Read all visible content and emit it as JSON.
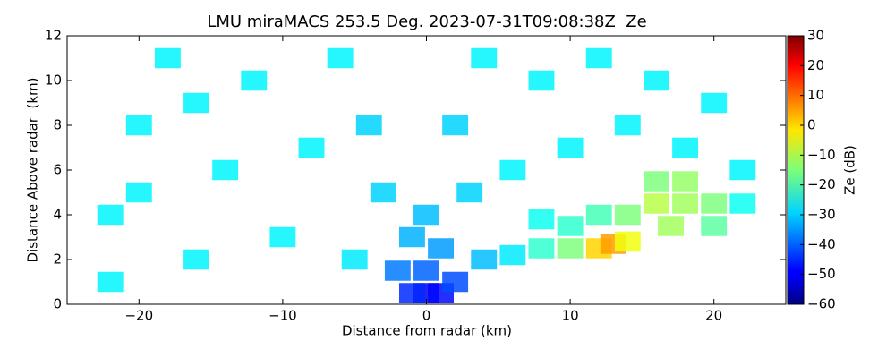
{
  "chart_data": {
    "type": "rhi",
    "title": "LMU miraMACS 253.5 Deg. 2023-07-31T09:08:38Z  Ze",
    "x_label": "Distance from radar (km)",
    "y_label": "Distance Above radar  (km)",
    "colorbar_label": "Ze (dB)",
    "xlim": [
      -25,
      25
    ],
    "ylim": [
      0,
      12
    ],
    "clim": [
      -60,
      30
    ],
    "xticks": [
      {
        "value": -20,
        "label": "−20"
      },
      {
        "value": -10,
        "label": "−10"
      },
      0,
      10,
      20
    ],
    "yticks": [
      0,
      2,
      4,
      6,
      8,
      10,
      12
    ],
    "cticks": [
      {
        "value": -60,
        "label": "−60"
      },
      {
        "value": -50,
        "label": "−50"
      },
      {
        "value": -40,
        "label": "−40"
      },
      {
        "value": -30,
        "label": "−30"
      },
      {
        "value": -20,
        "label": "−20"
      },
      {
        "value": -10,
        "label": "−10"
      },
      0,
      10,
      20,
      30
    ],
    "x": [
      0,
      1,
      -1,
      0,
      2,
      -2,
      1,
      -1,
      0,
      3,
      -3,
      4,
      6,
      8,
      10,
      12,
      13,
      14,
      14,
      16,
      18,
      20,
      16,
      18,
      12,
      10,
      8,
      22,
      20,
      17,
      -22,
      -22,
      -20,
      -18,
      -16,
      -14,
      -12,
      -10,
      -8,
      -6,
      -5,
      -4,
      2,
      4,
      6,
      8,
      10,
      12,
      14,
      16,
      18,
      20,
      22,
      -20,
      -16
    ],
    "y": [
      0.5,
      0.5,
      0.5,
      1.5,
      1,
      1.5,
      2.5,
      3,
      4,
      5,
      5,
      2,
      2.2,
      2.5,
      2.5,
      2.5,
      2.7,
      2.8,
      4,
      4.5,
      4.5,
      4.5,
      5.5,
      5.5,
      4,
      3.5,
      3.8,
      4.5,
      3.5,
      3.5,
      1,
      4,
      8,
      11,
      2,
      6,
      10,
      3,
      7,
      11,
      2,
      8,
      8,
      11,
      6,
      10,
      7,
      11,
      8,
      10,
      7,
      9,
      6,
      5,
      9
    ],
    "values": [
      -50,
      -48,
      -45,
      -40,
      -42,
      -38,
      -35,
      -33,
      -32,
      -30,
      -30,
      -32,
      -28,
      -22,
      -15,
      0,
      5,
      -5,
      -15,
      -10,
      -12,
      -15,
      -15,
      -13,
      -20,
      -22,
      -25,
      -25,
      -18,
      -12,
      -27,
      -27,
      -27,
      -27,
      -27,
      -27,
      -27,
      -27,
      -27,
      -27,
      -28,
      -30,
      -30,
      -27,
      -27,
      -27,
      -27,
      -27,
      -27,
      -27,
      -27,
      -27,
      -27,
      -27,
      -27
    ]
  }
}
